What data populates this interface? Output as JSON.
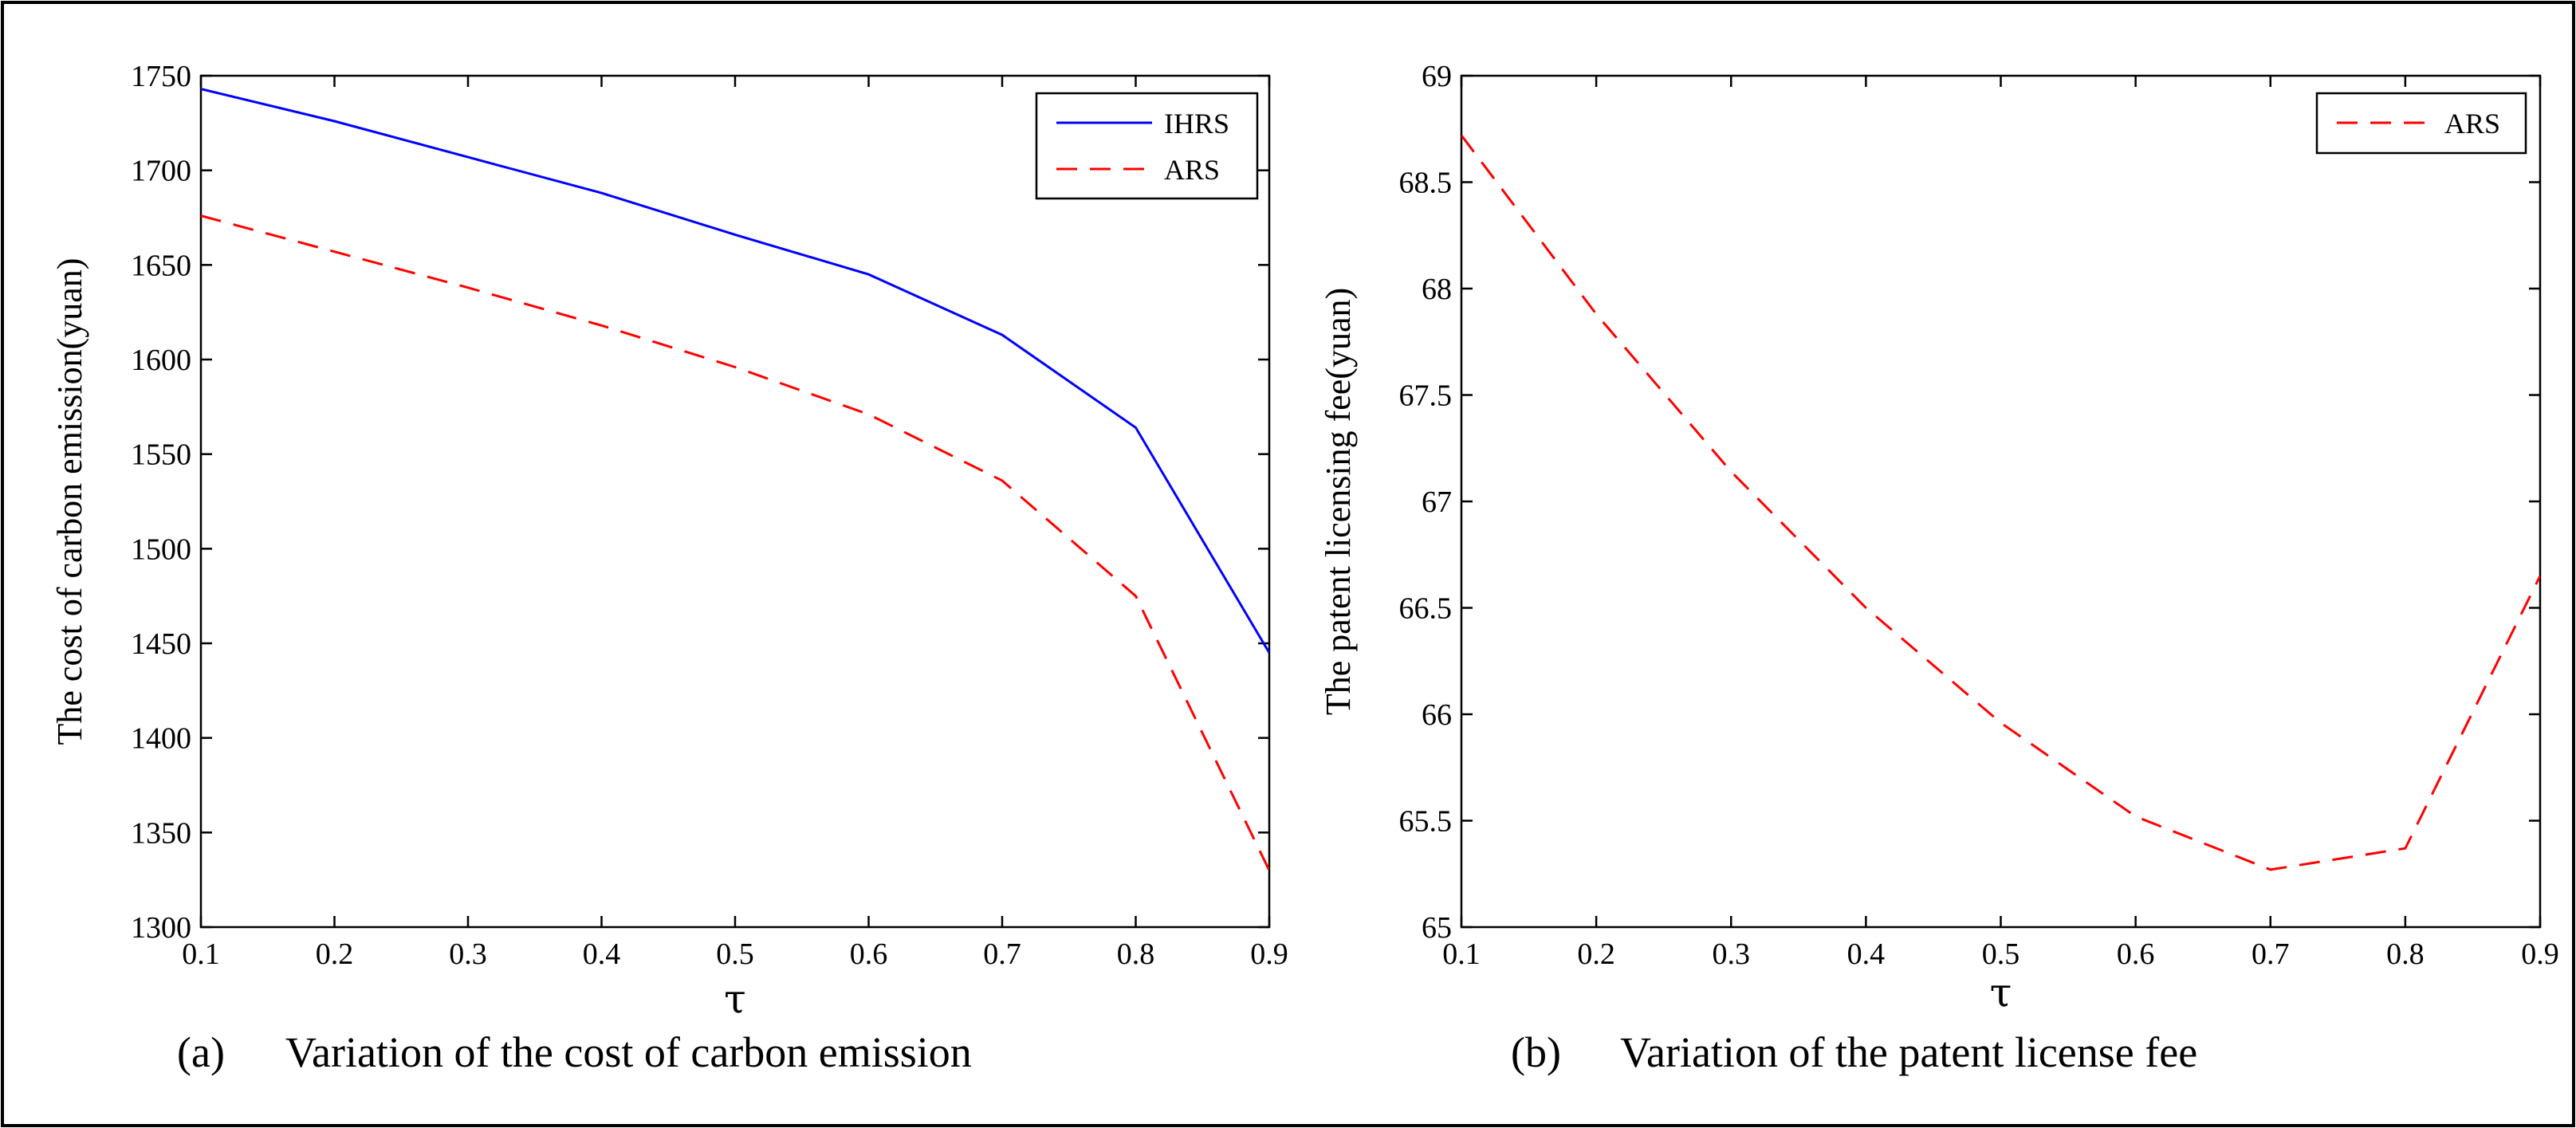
{
  "chart_data": [
    {
      "type": "line",
      "panel": "a",
      "caption_label": "(a)",
      "caption_text": "Variation of the cost of carbon emission",
      "xlabel": "τ",
      "ylabel": "The cost of carbon emission(yuan)",
      "x": [
        0.1,
        0.2,
        0.3,
        0.4,
        0.5,
        0.6,
        0.7,
        0.8,
        0.9
      ],
      "xlim": [
        0.1,
        0.9
      ],
      "ylim": [
        1300,
        1750
      ],
      "xticks": [
        0.1,
        0.2,
        0.3,
        0.4,
        0.5,
        0.6,
        0.7,
        0.8,
        0.9
      ],
      "yticks": [
        1300,
        1350,
        1400,
        1450,
        1500,
        1550,
        1600,
        1650,
        1700,
        1750
      ],
      "grid": false,
      "legend_position": "top-right",
      "series": [
        {
          "name": "IHRS",
          "color": "#0000ff",
          "style": "solid",
          "values": [
            1743,
            1726,
            1707,
            1688,
            1666,
            1645,
            1613,
            1564,
            1445
          ]
        },
        {
          "name": "ARS",
          "color": "#ff0000",
          "style": "dashed",
          "values": [
            1676,
            1657,
            1638,
            1618,
            1596,
            1571,
            1536,
            1475,
            1330
          ]
        }
      ]
    },
    {
      "type": "line",
      "panel": "b",
      "caption_label": "(b)",
      "caption_text": "Variation of the patent license fee",
      "xlabel": "τ",
      "ylabel": "The patent licensing fee(yuan)",
      "x": [
        0.1,
        0.2,
        0.3,
        0.4,
        0.5,
        0.6,
        0.7,
        0.8,
        0.9
      ],
      "xlim": [
        0.1,
        0.9
      ],
      "ylim": [
        65,
        69
      ],
      "xticks": [
        0.1,
        0.2,
        0.3,
        0.4,
        0.5,
        0.6,
        0.7,
        0.8,
        0.9
      ],
      "yticks": [
        65,
        65.5,
        66,
        66.5,
        67,
        67.5,
        68,
        68.5,
        69
      ],
      "grid": false,
      "legend_position": "top-right",
      "series": [
        {
          "name": "ARS",
          "color": "#ff0000",
          "style": "dashed",
          "values": [
            68.72,
            67.88,
            67.14,
            66.5,
            65.96,
            65.52,
            65.27,
            65.37,
            66.65
          ]
        }
      ]
    }
  ]
}
